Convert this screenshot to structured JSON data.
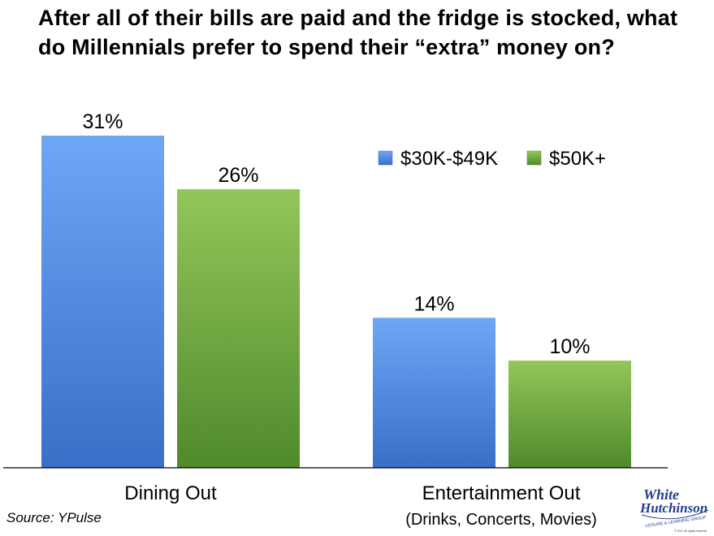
{
  "title": "After all of their bills are paid and the fridge is stocked, what do Millennials prefer to spend their “extra” money on?",
  "source": "Source: YPulse",
  "category_sublabels": [
    "",
    "(Drinks, Concerts, Movies)"
  ],
  "logo": {
    "line1": "White",
    "line2": "Hutchinson",
    "tagline": "LEISURE & LEARNING GROUP",
    "copyright": "© 2017 All rights reserved"
  },
  "colors": {
    "series_1_top": "#6fa6f5",
    "series_1_bottom": "#3a6fc7",
    "series_2_top": "#93c65a",
    "series_2_bottom": "#4f8a2b",
    "logo": "#1f3f8a"
  },
  "chart_data": {
    "type": "bar",
    "categories": [
      "Dining Out",
      "Entertainment Out"
    ],
    "series": [
      {
        "name": "$30K-$49K",
        "values": [
          31,
          14
        ]
      },
      {
        "name": "$50K+",
        "values": [
          26,
          10
        ]
      }
    ],
    "value_format": "percent",
    "data_labels": [
      "31%",
      "26%",
      "14%",
      "10%"
    ],
    "ylim": [
      0,
      31
    ],
    "y_axis_visible": false,
    "grid": false,
    "legend_position": "top-right",
    "xlabel": "",
    "ylabel": ""
  }
}
